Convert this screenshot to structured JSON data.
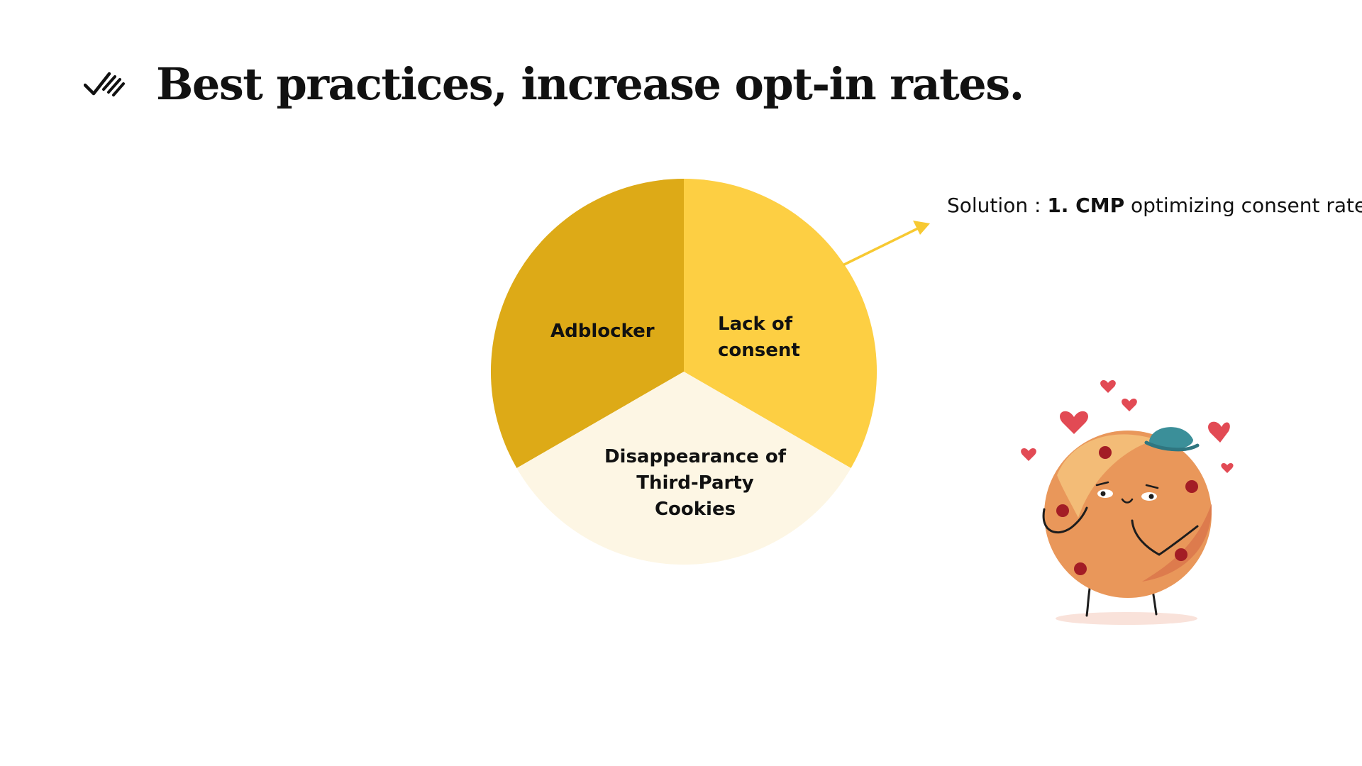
{
  "slide": {
    "title": "Best practices, increase opt-in rates.",
    "title_icon": "double-check-icon"
  },
  "diagram": {
    "type": "pie",
    "segments": [
      {
        "label": "Adblocker",
        "color": "#DDAA17"
      },
      {
        "label": "Lack of\nconsent",
        "color": "#FDCF43"
      },
      {
        "label": "Disappearance of\nThird-Party\nCookies",
        "color": "#FDF6E4"
      }
    ],
    "arrow_color": "#F7C932"
  },
  "solution": {
    "prefix": "Solution : ",
    "highlight": "1. CMP",
    "suffix": " optimizing consent rates"
  },
  "illustration": {
    "name": "cookie-mascot",
    "colors": {
      "body": "#E9975A",
      "body_light": "#F4C07A",
      "chips": "#A31D25",
      "hat": "#3B8F99",
      "hearts": "#E24A54"
    }
  }
}
